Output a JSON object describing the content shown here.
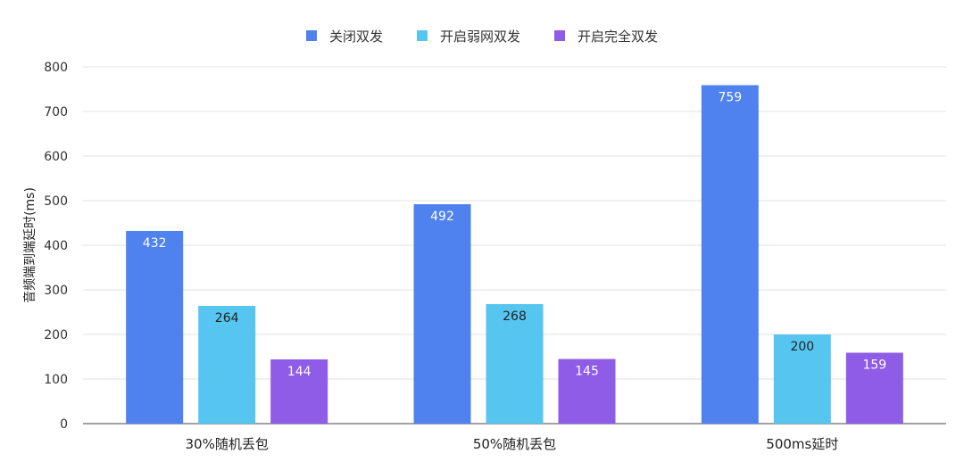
{
  "chart_data": {
    "type": "bar",
    "title": "",
    "xlabel": "",
    "ylabel": "音频端到端延时(ms)",
    "categories": [
      "30%随机丢包",
      "50%随机丢包",
      "500ms延时"
    ],
    "series": [
      {
        "name": "关闭双发",
        "values": [
          432,
          492,
          759
        ],
        "color": "#4F81EF",
        "label_color": "#ffffff"
      },
      {
        "name": "开启弱网双发",
        "values": [
          264,
          268,
          200
        ],
        "color": "#56C6F0",
        "label_color": "#222222"
      },
      {
        "name": "开启完全双发",
        "values": [
          144,
          145,
          159
        ],
        "color": "#8E5CE6",
        "label_color": "#ffffff"
      }
    ],
    "ylim": [
      0,
      800
    ],
    "yticks": [
      0,
      100,
      200,
      300,
      400,
      500,
      600,
      700,
      800
    ],
    "grid": true,
    "legend_position": "top-center"
  }
}
